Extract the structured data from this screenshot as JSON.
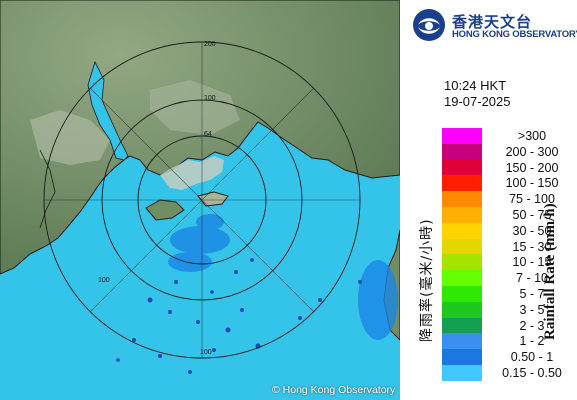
{
  "header": {
    "org_name_cn": "香港天文台",
    "org_name_en": "HONG KONG OBSERVATORY",
    "time": "10:24 HKT",
    "date": "19-07-2025"
  },
  "map": {
    "copyright": "© Hong Kong Observatory",
    "range_rings": [
      {
        "km": 64,
        "label": "64"
      },
      {
        "km": 100,
        "label": "100"
      },
      {
        "km": 200,
        "label": "200"
      }
    ],
    "colors": {
      "sea": "#35c6ec",
      "land": "#6f8f62",
      "urban": "#c9cfc0",
      "rings": "#1a1a1a",
      "rain_light": "#1e86e8",
      "rain_lightest": "#0b45b8"
    }
  },
  "legend": {
    "title_en": "Rainfall Rate (mm/h)",
    "title_cn": "降雨率(毫米/小時)",
    "items": [
      {
        "label": ">300",
        "color": "#ff00ff"
      },
      {
        "label": "200 - 300",
        "color": "#c8007d"
      },
      {
        "label": "150 - 200",
        "color": "#e0003a"
      },
      {
        "label": "100 - 150",
        "color": "#ff1e00"
      },
      {
        "label": "75 - 100",
        "color": "#ff8a00"
      },
      {
        "label": "50 - 75",
        "color": "#ffb000"
      },
      {
        "label": "30 - 50",
        "color": "#ffd300"
      },
      {
        "label": "15 - 30",
        "color": "#e4d700"
      },
      {
        "label": "10 - 15",
        "color": "#a6e400"
      },
      {
        "label": "7 - 10",
        "color": "#66ff00"
      },
      {
        "label": "5 - 7",
        "color": "#2ee800"
      },
      {
        "label": "3 - 5",
        "color": "#1ec81e"
      },
      {
        "label": "2 - 3",
        "color": "#14a050"
      },
      {
        "label": "1 - 2",
        "color": "#3b8ff0"
      },
      {
        "label": "0.50 - 1",
        "color": "#1c78e0"
      },
      {
        "label": "0.15 - 0.50",
        "color": "#40c8ff"
      }
    ]
  }
}
